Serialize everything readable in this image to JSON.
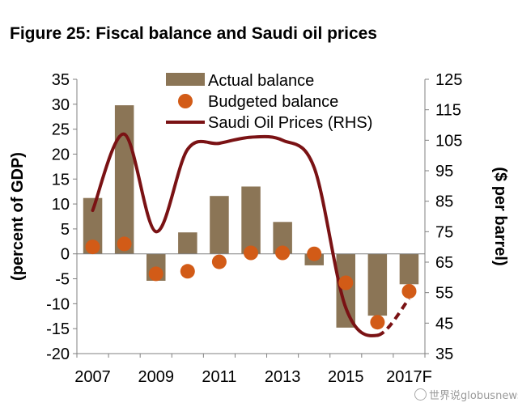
{
  "title": "Figure 25: Fiscal balance and Saudi oil prices",
  "watermark": "世界说globusnews",
  "colors": {
    "bar": "#8b7556",
    "dot": "#d25b17",
    "line": "#7a1214",
    "axis": "#808080",
    "text": "#000000"
  },
  "chart_data": {
    "type": "bar",
    "title": "Figure 25: Fiscal balance and Saudi oil prices",
    "ylabel": "(percent of GDP)",
    "y2label": "($ per barrel)",
    "ylim": [
      -20,
      35
    ],
    "y2lim": [
      35,
      125
    ],
    "yticks": [
      35,
      30,
      25,
      20,
      15,
      10,
      5,
      0,
      -5,
      -10,
      -15,
      -20
    ],
    "y2ticks": [
      125,
      115,
      105,
      95,
      85,
      75,
      65,
      55,
      45,
      35
    ],
    "categories": [
      "2007",
      "2008",
      "2009",
      "2010",
      "2011",
      "2012",
      "2013",
      "2014",
      "2015",
      "2016",
      "2017F"
    ],
    "x_tick_labels": [
      "2007",
      "2009",
      "2011",
      "2013",
      "2015",
      "2017F"
    ],
    "legend_position": "top-center",
    "grid": false,
    "series": [
      {
        "name": "Actual balance",
        "type": "bar",
        "axis": "left",
        "values": [
          11.2,
          29.8,
          -5.4,
          4.3,
          11.6,
          13.5,
          6.4,
          -2.3,
          -14.8,
          -12.4,
          -6.1
        ]
      },
      {
        "name": "Budgeted balance",
        "type": "scatter",
        "axis": "left",
        "values": [
          1.4,
          2.0,
          -4.0,
          -3.5,
          -1.6,
          0.2,
          0.2,
          0.0,
          -5.8,
          -13.7,
          -7.5
        ]
      },
      {
        "name": "Saudi Oil Prices (RHS)",
        "type": "line",
        "axis": "right",
        "x": [
          2007,
          2008,
          2009,
          2010,
          2011,
          2012,
          2013,
          2014,
          2015,
          2016,
          2017
        ],
        "values": [
          82,
          107,
          75,
          102,
          104,
          106,
          105,
          96,
          50,
          41,
          53
        ],
        "dashed_from": 2016
      }
    ]
  }
}
